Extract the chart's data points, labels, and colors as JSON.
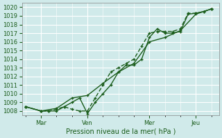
{
  "title": "",
  "xlabel": "Pression niveau de la mer( hPa )",
  "ylabel": "",
  "bg_color": "#d0eaea",
  "grid_color": "#ffffff",
  "line_color": "#1a5c1a",
  "ylim": [
    1007.5,
    1020.5
  ],
  "yticks": [
    1008,
    1009,
    1010,
    1011,
    1012,
    1013,
    1014,
    1015,
    1016,
    1017,
    1018,
    1019,
    1020
  ],
  "xtick_labels": [
    "Mar",
    "Ven",
    "Mer",
    "Jeu"
  ],
  "xtick_positions": [
    1,
    4,
    8,
    11
  ],
  "xlim": [
    -0.2,
    12.5
  ],
  "line1_x": [
    0,
    1,
    1.5,
    2,
    2.5,
    3,
    3.5,
    4,
    4.5,
    5,
    5.5,
    6,
    6.5,
    7,
    7.5,
    8,
    8.5,
    9,
    9.5,
    10,
    10.5,
    11,
    11.5,
    12
  ],
  "line1_y": [
    1008.5,
    1008.0,
    1008.0,
    1008.0,
    1008.5,
    1009.0,
    1009.5,
    1007.7,
    1009.0,
    1010.0,
    1011.0,
    1012.5,
    1013.3,
    1013.3,
    1014.0,
    1016.5,
    1017.5,
    1017.0,
    1017.0,
    1017.2,
    1019.2,
    1019.3,
    1019.5,
    1019.8
  ],
  "line2_x": [
    0,
    1,
    1.5,
    2,
    2.5,
    3,
    3.5,
    4,
    4.5,
    5,
    5.5,
    6,
    6.5,
    7,
    7.5,
    8,
    8.5,
    9,
    9.5,
    10,
    10.5,
    11,
    11.5,
    12
  ],
  "line2_y": [
    1008.5,
    1008.0,
    1008.0,
    1008.2,
    1008.5,
    1008.2,
    1008.0,
    1008.0,
    1009.5,
    1011.0,
    1012.5,
    1013.0,
    1013.5,
    1014.0,
    1015.5,
    1017.0,
    1017.2,
    1017.2,
    1017.2,
    1017.5,
    1019.3,
    1019.3,
    1019.5,
    1019.8
  ],
  "line3_x": [
    0,
    1,
    2,
    3,
    4,
    5,
    6,
    7,
    8,
    9,
    10,
    11,
    12
  ],
  "line3_y": [
    1008.5,
    1008.0,
    1008.3,
    1009.5,
    1009.8,
    1011.2,
    1012.5,
    1013.5,
    1016.0,
    1016.5,
    1017.3,
    1019.2,
    1019.8
  ]
}
